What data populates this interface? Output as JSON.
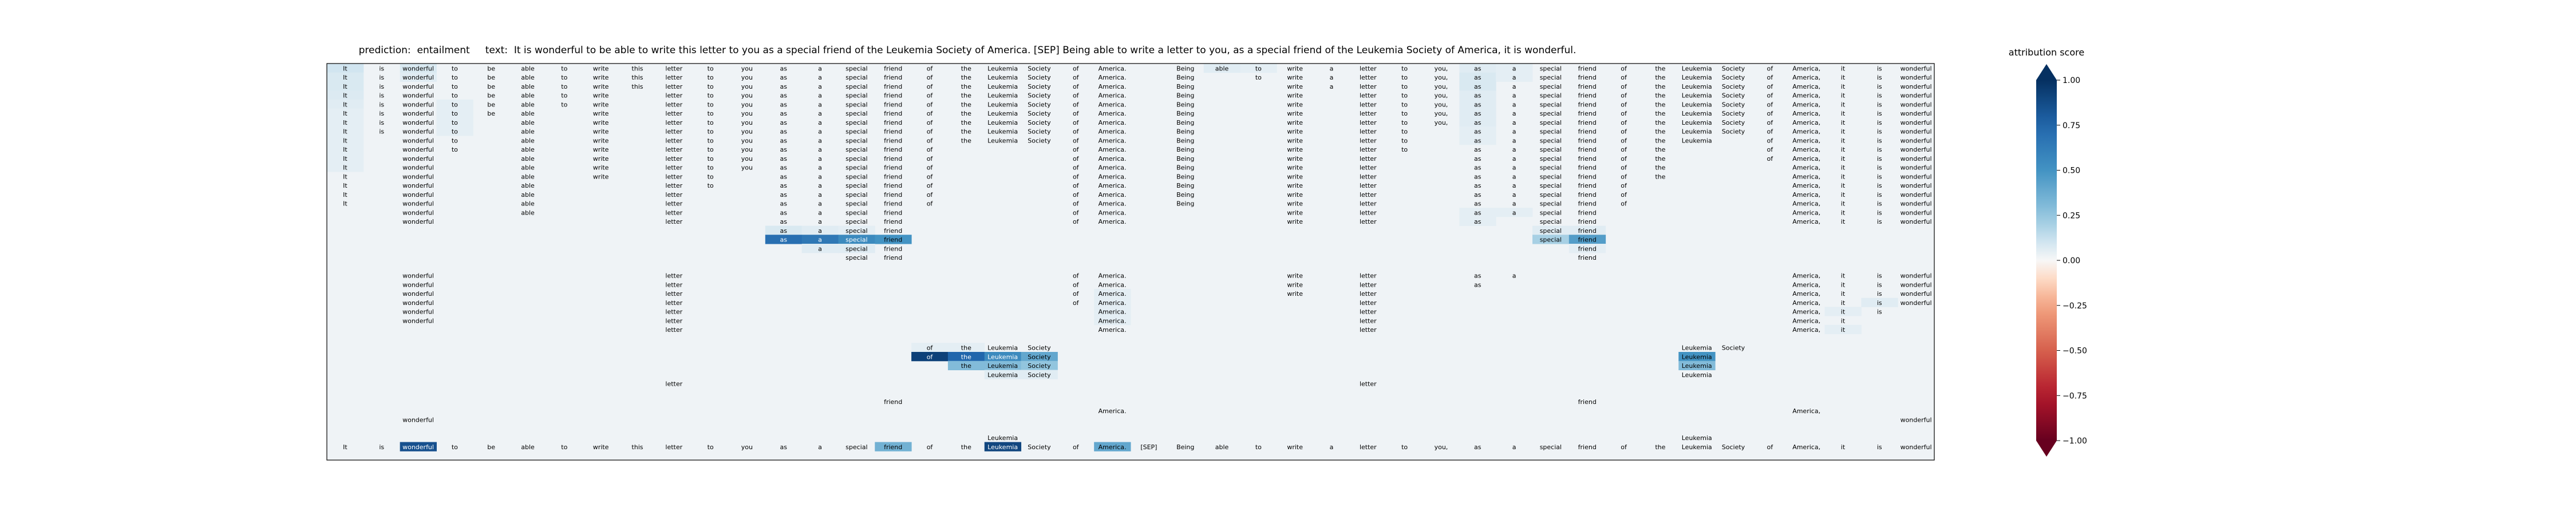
{
  "title": {
    "prediction_label": "prediction:",
    "prediction": "entailment",
    "text_label": "text:",
    "text": "It is wonderful to be able to write this letter to you as a special friend of the Leukemia Society of America. [SEP] Being able to write a letter to you, as a special friend of the Leukemia Society of America, it is wonderful."
  },
  "colorbar": {
    "label": "attribution score",
    "ticks": [
      "1.00",
      "0.75",
      "0.50",
      "0.25",
      "0.00",
      "−0.25",
      "−0.50",
      "−0.75",
      "−1.00"
    ],
    "tick_values": [
      1,
      0.75,
      0.5,
      0.25,
      0,
      -0.25,
      -0.5,
      -0.75,
      -1
    ],
    "colormap": "RdBu",
    "low_color": "#67001f",
    "mid_color": "#f7f7f7",
    "high_color": "#053061"
  },
  "chart_data": {
    "type": "heatmap",
    "description_note": "",
    "tokens": [
      "It",
      "is",
      "wonderful",
      "to",
      "be",
      "able",
      "to",
      "write",
      "this",
      "letter",
      "to",
      "you",
      "as",
      "a",
      "special",
      "friend",
      "of",
      "the",
      "Leukemia",
      "Society",
      "of",
      "America.",
      "[SEP]",
      "Being",
      "able",
      "to",
      "write",
      "a",
      "letter",
      "to",
      "you,",
      "as",
      "a",
      "special",
      "friend",
      "of",
      "the",
      "Leukemia",
      "Society",
      "of",
      "America,",
      "it",
      "is",
      "wonderful"
    ],
    "vmin": -1,
    "vmax": 1,
    "n_rows": 44,
    "rows": [
      {
        "show": [
          0,
          1,
          2,
          3,
          4,
          5,
          6,
          7,
          8,
          9,
          10,
          11,
          12,
          13,
          14,
          15,
          16,
          17,
          18,
          19,
          20,
          21,
          23,
          24,
          25,
          26,
          27,
          28,
          29,
          30,
          31,
          32,
          33,
          34,
          35,
          36,
          37,
          38,
          39,
          40,
          41,
          42,
          43
        ],
        "hi": {
          "0": 0.1,
          "2": 0.08,
          "24": 0.06,
          "25": 0.05,
          "31": 0.06,
          "32": 0.05
        }
      },
      {
        "show": [
          0,
          1,
          2,
          3,
          4,
          5,
          6,
          7,
          8,
          9,
          10,
          11,
          12,
          13,
          14,
          15,
          16,
          17,
          18,
          19,
          20,
          21,
          23,
          25,
          26,
          27,
          28,
          29,
          30,
          31,
          32,
          33,
          34,
          35,
          36,
          37,
          38,
          39,
          40,
          41,
          42,
          43
        ],
        "hi": {
          "0": 0.08,
          "2": 0.06,
          "31": 0.08,
          "32": 0.05
        }
      },
      {
        "show": [
          0,
          1,
          2,
          3,
          4,
          5,
          6,
          7,
          8,
          9,
          10,
          11,
          12,
          13,
          14,
          15,
          16,
          17,
          18,
          19,
          20,
          21,
          23,
          26,
          27,
          28,
          29,
          30,
          31,
          32,
          33,
          34,
          35,
          36,
          37,
          38,
          39,
          40,
          41,
          42,
          43
        ],
        "hi": {
          "0": 0.08,
          "31": 0.08
        }
      },
      {
        "show": [
          0,
          1,
          2,
          3,
          4,
          5,
          6,
          7,
          9,
          10,
          11,
          12,
          13,
          14,
          15,
          16,
          17,
          18,
          19,
          20,
          21,
          23,
          26,
          28,
          29,
          30,
          31,
          32,
          33,
          34,
          35,
          36,
          37,
          38,
          39,
          40,
          41,
          42,
          43
        ],
        "hi": {
          "0": 0.07,
          "31": 0.06
        }
      },
      {
        "show": [
          0,
          1,
          2,
          3,
          4,
          5,
          6,
          7,
          9,
          10,
          11,
          12,
          13,
          14,
          15,
          16,
          17,
          18,
          19,
          20,
          21,
          23,
          26,
          28,
          29,
          30,
          31,
          32,
          33,
          34,
          35,
          36,
          37,
          38,
          39,
          40,
          41,
          42,
          43
        ],
        "hi": {
          "0": 0.06,
          "3": 0.05,
          "31": 0.06
        }
      },
      {
        "show": [
          0,
          1,
          2,
          3,
          4,
          5,
          7,
          9,
          10,
          11,
          12,
          13,
          14,
          15,
          16,
          17,
          18,
          19,
          20,
          21,
          23,
          26,
          28,
          29,
          30,
          31,
          32,
          33,
          34,
          35,
          36,
          37,
          38,
          39,
          40,
          41,
          42,
          43
        ],
        "hi": {
          "0": 0.05,
          "3": 0.05,
          "31": 0.06
        }
      },
      {
        "show": [
          0,
          1,
          2,
          3,
          5,
          7,
          9,
          10,
          11,
          12,
          13,
          14,
          15,
          16,
          17,
          18,
          19,
          20,
          21,
          23,
          26,
          28,
          29,
          30,
          31,
          32,
          33,
          34,
          35,
          36,
          37,
          38,
          39,
          40,
          41,
          42,
          43
        ],
        "hi": {
          "0": 0.05,
          "3": 0.05,
          "31": 0.06
        }
      },
      {
        "show": [
          0,
          1,
          2,
          3,
          5,
          7,
          9,
          10,
          11,
          12,
          13,
          14,
          15,
          16,
          17,
          18,
          19,
          20,
          21,
          23,
          26,
          28,
          29,
          31,
          32,
          33,
          34,
          35,
          36,
          37,
          38,
          39,
          40,
          41,
          42,
          43
        ],
        "hi": {
          "0": 0.05,
          "3": 0.05,
          "31": 0.05
        }
      },
      {
        "show": [
          0,
          2,
          3,
          5,
          7,
          9,
          10,
          11,
          12,
          13,
          14,
          15,
          16,
          17,
          18,
          19,
          20,
          21,
          23,
          26,
          28,
          29,
          31,
          32,
          33,
          34,
          35,
          36,
          37,
          39,
          40,
          41,
          42,
          43
        ],
        "hi": {
          "0": 0.05,
          "31": 0.05
        }
      },
      {
        "show": [
          0,
          2,
          3,
          5,
          7,
          9,
          10,
          11,
          12,
          13,
          14,
          15,
          16,
          20,
          21,
          23,
          26,
          28,
          29,
          31,
          32,
          33,
          34,
          35,
          36,
          39,
          40,
          41,
          42,
          43
        ],
        "hi": {
          "0": 0.05
        }
      },
      {
        "show": [
          0,
          2,
          5,
          7,
          9,
          10,
          11,
          12,
          13,
          14,
          15,
          16,
          20,
          21,
          23,
          26,
          28,
          31,
          32,
          33,
          34,
          35,
          36,
          39,
          40,
          41,
          42,
          43
        ],
        "hi": {
          "0": 0.05
        }
      },
      {
        "show": [
          0,
          2,
          5,
          7,
          9,
          10,
          11,
          12,
          13,
          14,
          15,
          16,
          20,
          21,
          23,
          26,
          28,
          31,
          32,
          33,
          34,
          35,
          36,
          40,
          41,
          42,
          43
        ],
        "hi": {
          "0": 0.05
        }
      },
      {
        "show": [
          0,
          2,
          5,
          7,
          9,
          10,
          12,
          13,
          14,
          15,
          16,
          20,
          21,
          23,
          26,
          28,
          31,
          32,
          33,
          34,
          35,
          36,
          40,
          41,
          42,
          43
        ],
        "hi": {}
      },
      {
        "show": [
          0,
          2,
          5,
          9,
          10,
          12,
          13,
          14,
          15,
          16,
          20,
          21,
          23,
          26,
          28,
          31,
          32,
          33,
          34,
          35,
          40,
          41,
          42,
          43
        ],
        "hi": {}
      },
      {
        "show": [
          0,
          2,
          5,
          9,
          12,
          13,
          14,
          15,
          16,
          20,
          21,
          23,
          26,
          28,
          31,
          32,
          33,
          34,
          35,
          40,
          41,
          42,
          43
        ],
        "hi": {}
      },
      {
        "show": [
          0,
          2,
          5,
          9,
          12,
          13,
          14,
          15,
          16,
          20,
          21,
          23,
          26,
          28,
          31,
          32,
          33,
          34,
          35,
          40,
          41,
          42,
          43
        ],
        "hi": {}
      },
      {
        "show": [
          2,
          5,
          9,
          12,
          13,
          14,
          15,
          20,
          21,
          26,
          28,
          31,
          32,
          33,
          34,
          40,
          41,
          42,
          43
        ],
        "hi": {
          "31": 0.05,
          "32": 0.05
        }
      },
      {
        "show": [
          2,
          9,
          12,
          13,
          14,
          15,
          20,
          21,
          26,
          28,
          31,
          33,
          34,
          40,
          41,
          42,
          43
        ],
        "hi": {
          "31": 0.05
        }
      },
      {
        "show": [
          12,
          13,
          14,
          15,
          33,
          34
        ],
        "hi": {
          "12": 0.08,
          "13": 0.06,
          "14": 0.05,
          "33": 0.06,
          "34": 0.06
        }
      },
      {
        "show": [
          12,
          13,
          14,
          15,
          33,
          34
        ],
        "hi": {
          "12": 0.7,
          "13": 0.65,
          "14": 0.55,
          "15": 0.5,
          "33": 0.2,
          "34": 0.45
        }
      },
      {
        "show": [
          13,
          14,
          15,
          34
        ],
        "hi": {
          "13": 0.06,
          "14": 0.06,
          "34": 0.05
        }
      },
      {
        "show": [
          14,
          15,
          34
        ],
        "hi": {}
      },
      {
        "show": [],
        "hi": {}
      },
      {
        "show": [
          2,
          9,
          20,
          21,
          26,
          28,
          31,
          32,
          40,
          41,
          42,
          43
        ],
        "hi": {}
      },
      {
        "show": [
          2,
          9,
          20,
          21,
          26,
          28,
          31,
          40,
          41,
          42,
          43
        ],
        "hi": {}
      },
      {
        "show": [
          2,
          9,
          20,
          21,
          26,
          28,
          40,
          41,
          42,
          43
        ],
        "hi": {
          "21": 0.05
        }
      },
      {
        "show": [
          2,
          9,
          20,
          21,
          28,
          40,
          41,
          42,
          43
        ],
        "hi": {
          "21": 0.05,
          "42": 0.06
        }
      },
      {
        "show": [
          2,
          9,
          21,
          28,
          40,
          41,
          42
        ],
        "hi": {
          "21": 0.05,
          "41": 0.05
        }
      },
      {
        "show": [
          2,
          9,
          21,
          28,
          40,
          41
        ],
        "hi": {
          "21": 0.05
        }
      },
      {
        "show": [
          9,
          21,
          28,
          40,
          41
        ],
        "hi": {
          "41": 0.05
        }
      },
      {
        "show": [],
        "hi": {}
      },
      {
        "show": [
          16,
          17,
          18,
          19,
          37,
          38
        ],
        "hi": {
          "16": 0.05,
          "17": 0.05
        }
      },
      {
        "show": [
          16,
          17,
          18,
          19,
          37
        ],
        "hi": {
          "16": 0.92,
          "17": 0.75,
          "18": 0.55,
          "19": 0.4,
          "37": 0.5
        }
      },
      {
        "show": [
          17,
          18,
          19,
          37
        ],
        "hi": {
          "17": 0.3,
          "18": 0.3,
          "19": 0.25,
          "37": 0.3
        }
      },
      {
        "show": [
          18,
          19,
          37
        ],
        "hi": {
          "18": 0.06,
          "19": 0.06
        }
      },
      {
        "show": [
          9,
          28
        ],
        "hi": {}
      },
      {
        "show": [],
        "hi": {}
      },
      {
        "show": [
          15,
          34
        ],
        "hi": {}
      },
      {
        "show": [
          21,
          40
        ],
        "hi": {}
      },
      {
        "show": [
          2,
          43
        ],
        "hi": {}
      },
      {
        "show": [],
        "hi": {}
      },
      {
        "show": [
          18,
          37
        ],
        "hi": {}
      },
      {
        "show": [
          0,
          1,
          2,
          3,
          4,
          5,
          6,
          7,
          8,
          9,
          10,
          11,
          12,
          13,
          14,
          15,
          16,
          17,
          18,
          19,
          20,
          21,
          22,
          23,
          24,
          25,
          26,
          27,
          28,
          29,
          30,
          31,
          32,
          33,
          34,
          35,
          36,
          37,
          38,
          39,
          40,
          41,
          42,
          43
        ],
        "hi": {
          "2": 0.85,
          "15": 0.35,
          "18": 0.9,
          "21": 0.4
        }
      },
      {
        "show": [],
        "hi": {}
      }
    ]
  }
}
